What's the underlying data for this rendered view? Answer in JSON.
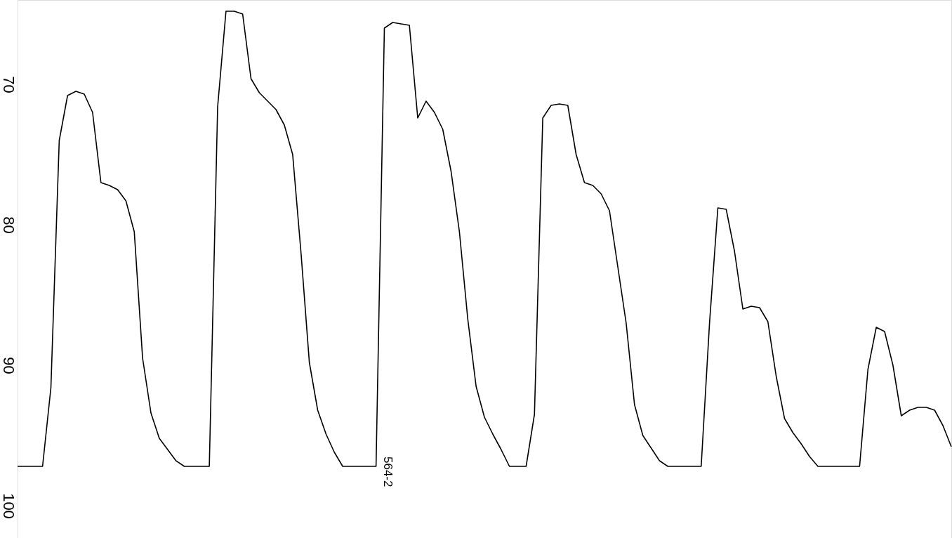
{
  "chart_data": {
    "type": "line",
    "categories": [
      null,
      null,
      null,
      null,
      null,
      null,
      null,
      null,
      null,
      null,
      null,
      null,
      null,
      null,
      null,
      null,
      null,
      null,
      null,
      null,
      null,
      null,
      null,
      null,
      null,
      null,
      null,
      null,
      null,
      null,
      null,
      null,
      null,
      null,
      null,
      null,
      null,
      null,
      null,
      null,
      null,
      null,
      null,
      null,
      null,
      null,
      null,
      null,
      null,
      null,
      null,
      null,
      null,
      null,
      null,
      null,
      null,
      null,
      null,
      null,
      null,
      null,
      null,
      null,
      null,
      null,
      null,
      null,
      null,
      null,
      null,
      null,
      null,
      null,
      null,
      null,
      null,
      null,
      null,
      null,
      null,
      null,
      null,
      null,
      null,
      null,
      null,
      null,
      null,
      null,
      null,
      null,
      null,
      null,
      null,
      null,
      null,
      null,
      null,
      null,
      null,
      null,
      null,
      null,
      null,
      null,
      null,
      null,
      null,
      null,
      null,
      null,
      null
    ],
    "series": [
      {
        "color": "#000000",
        "values": [
          97.2,
          97.2,
          97.2,
          97.2,
          91.6,
          74,
          70.8,
          70.5,
          70.7,
          72,
          77.0,
          77.2,
          77.5,
          78.3,
          80.5,
          89.5,
          93.4,
          95.2,
          96,
          96.8,
          97.2,
          97.2,
          97.2,
          97.2,
          71.6,
          64.8,
          64.8,
          65,
          69.6,
          70.6,
          71.2,
          71.8,
          72.9,
          75,
          82,
          89.8,
          93.2,
          94.9,
          96.2,
          97.2,
          97.2,
          97.2,
          97.2,
          97.2,
          66,
          65.6,
          65.7,
          65.8,
          72.4,
          71.2,
          72,
          73.2,
          76.2,
          80.5,
          86.7,
          91.5,
          93.7,
          94.9,
          96,
          97.2,
          97.2,
          97.2,
          93.5,
          72.4,
          71.5,
          71.4,
          71.5,
          75,
          77,
          77.2,
          77.8,
          79,
          83,
          87,
          92.8,
          95,
          95.9,
          96.8,
          97.2,
          97.2,
          97.2,
          97.2,
          97.2,
          87,
          78.8,
          78.9,
          81.9,
          86,
          85.8,
          85.9,
          86.9,
          90.8,
          93.8,
          94.8,
          95.6,
          96.5,
          97.2,
          97.2,
          97.2,
          97.2,
          97.2,
          97.2,
          90.3,
          87.3,
          87.6,
          90,
          93.6,
          93.2,
          93,
          93,
          93.2,
          94.3,
          95.8
        ]
      }
    ],
    "ylim": [
      102.3,
      64
    ],
    "yticks": [
      70,
      80,
      90,
      100
    ],
    "annotations": [
      "564-2"
    ],
    "grid": false,
    "marker": "none",
    "line_style": "solid",
    "tick_labels": "y"
  }
}
